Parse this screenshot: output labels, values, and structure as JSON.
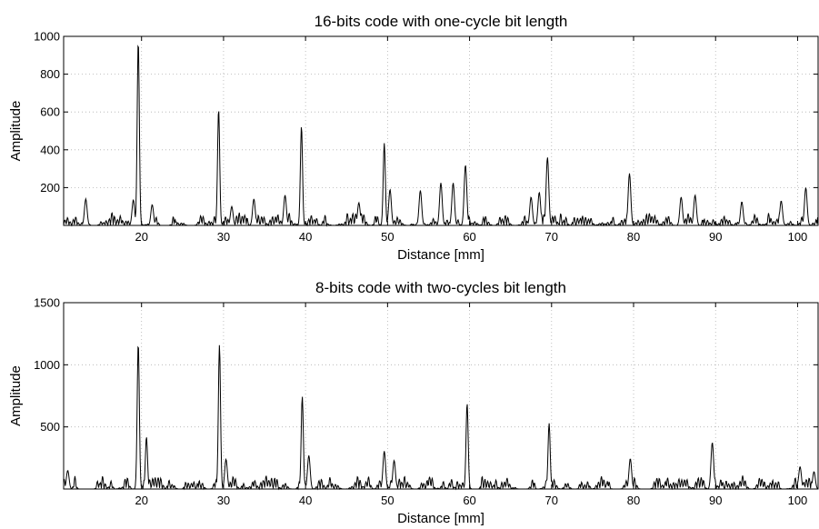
{
  "chart_data": [
    {
      "type": "line",
      "title": "16-bits code with one-cycle bit length",
      "xlabel": "Distance [mm]",
      "ylabel": "Amplitude",
      "xlim": [
        10.5,
        102.5
      ],
      "ylim": [
        0,
        1000
      ],
      "grid": true,
      "xticks": [
        20,
        30,
        40,
        50,
        60,
        70,
        80,
        90,
        100
      ],
      "yticks": [
        200,
        400,
        600,
        800,
        1000
      ],
      "series": [
        {
          "peaks": [
            {
              "x": 13.2,
              "y": 140
            },
            {
              "x": 19.0,
              "y": 135
            },
            {
              "x": 19.6,
              "y": 975
            },
            {
              "x": 21.3,
              "y": 110
            },
            {
              "x": 29.4,
              "y": 615
            },
            {
              "x": 31.0,
              "y": 100
            },
            {
              "x": 33.7,
              "y": 140
            },
            {
              "x": 37.5,
              "y": 160
            },
            {
              "x": 39.5,
              "y": 525
            },
            {
              "x": 46.5,
              "y": 120
            },
            {
              "x": 49.6,
              "y": 435
            },
            {
              "x": 50.3,
              "y": 190
            },
            {
              "x": 54.0,
              "y": 185
            },
            {
              "x": 56.5,
              "y": 225
            },
            {
              "x": 58.0,
              "y": 225
            },
            {
              "x": 59.5,
              "y": 320
            },
            {
              "x": 67.5,
              "y": 150
            },
            {
              "x": 68.5,
              "y": 175
            },
            {
              "x": 69.5,
              "y": 360
            },
            {
              "x": 79.5,
              "y": 275
            },
            {
              "x": 85.8,
              "y": 150
            },
            {
              "x": 87.5,
              "y": 160
            },
            {
              "x": 93.2,
              "y": 125
            },
            {
              "x": 98.0,
              "y": 130
            },
            {
              "x": 101.0,
              "y": 200
            }
          ],
          "noise_level": 70
        }
      ]
    },
    {
      "type": "line",
      "title": "8-bits code with two-cycles bit length",
      "xlabel": "Distance [mm]",
      "ylabel": "Amplitude",
      "xlim": [
        10.5,
        102.5
      ],
      "ylim": [
        0,
        1500
      ],
      "grid": true,
      "xticks": [
        20,
        30,
        40,
        50,
        60,
        70,
        80,
        90,
        100
      ],
      "yticks": [
        500,
        1000,
        1500
      ],
      "series": [
        {
          "peaks": [
            {
              "x": 11.0,
              "y": 150
            },
            {
              "x": 19.6,
              "y": 1175
            },
            {
              "x": 20.6,
              "y": 420
            },
            {
              "x": 29.5,
              "y": 1160
            },
            {
              "x": 30.3,
              "y": 240
            },
            {
              "x": 39.6,
              "y": 745
            },
            {
              "x": 40.4,
              "y": 270
            },
            {
              "x": 49.6,
              "y": 305
            },
            {
              "x": 50.8,
              "y": 230
            },
            {
              "x": 59.7,
              "y": 690
            },
            {
              "x": 69.7,
              "y": 530
            },
            {
              "x": 79.6,
              "y": 245
            },
            {
              "x": 89.6,
              "y": 375
            },
            {
              "x": 100.3,
              "y": 180
            },
            {
              "x": 102.0,
              "y": 140
            }
          ],
          "noise_level": 110
        }
      ]
    }
  ]
}
